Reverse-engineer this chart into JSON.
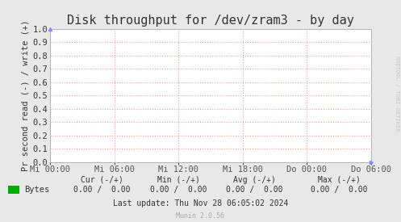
{
  "title": "Disk throughput for /dev/zram3 - by day",
  "ylabel": "Pr second read (-) / write (+)",
  "background_color": "#e8e8e8",
  "plot_background_color": "#ffffff",
  "grid_color": "#ff9999",
  "ylim": [
    0.0,
    1.0
  ],
  "yticks": [
    0.0,
    0.1,
    0.2,
    0.3,
    0.4,
    0.5,
    0.6,
    0.7,
    0.8,
    0.9,
    1.0
  ],
  "xtick_labels": [
    "Mi 00:00",
    "Mi 06:00",
    "Mi 12:00",
    "Mi 18:00",
    "Do 00:00",
    "Do 06:00"
  ],
  "legend_label": "Bytes",
  "legend_color": "#00aa00",
  "cur_label": "Cur (-/+)",
  "min_label": "Min (-/+)",
  "avg_label": "Avg (-/+)",
  "max_label": "Max (-/+)",
  "cur_val": "0.00 /  0.00",
  "min_val": "0.00 /  0.00",
  "avg_val": "0.00 /  0.00",
  "max_val": "0.00 /  0.00",
  "last_update": "Last update: Thu Nov 28 06:05:02 2024",
  "munin_version": "Munin 2.0.56",
  "rrdtool_text": "RRDTOOL / TOBI OETIKER",
  "title_fontsize": 11,
  "ylabel_fontsize": 7.5,
  "tick_fontsize": 7.5,
  "small_fontsize": 7,
  "munin_fontsize": 6
}
